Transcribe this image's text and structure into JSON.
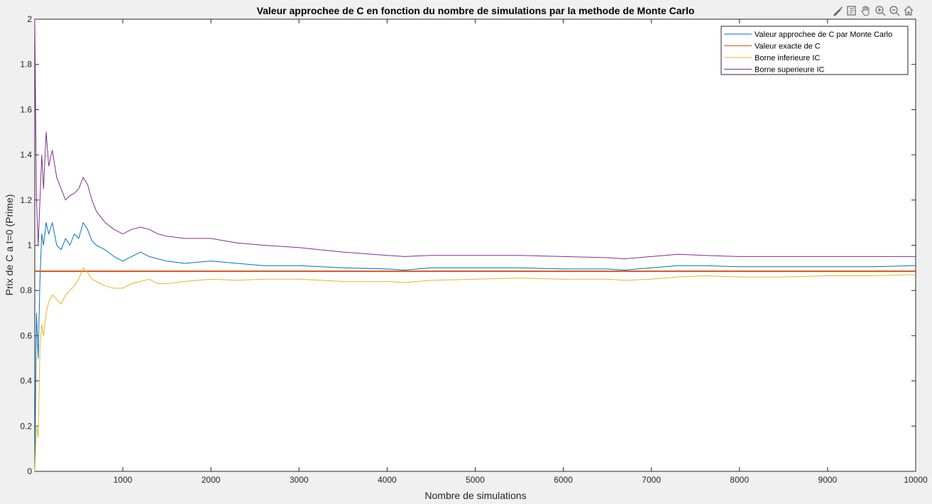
{
  "figure": {
    "toolbar": [
      {
        "name": "brush-icon"
      },
      {
        "name": "datatips-icon"
      },
      {
        "name": "pan-hand-icon"
      },
      {
        "name": "zoom-in-icon"
      },
      {
        "name": "zoom-out-icon"
      },
      {
        "name": "home-icon"
      }
    ]
  },
  "chart_data": {
    "type": "line",
    "title": "Valeur approchee de C en fonction du nombre de simulations par la methode de Monte Carlo",
    "xlabel": "Nombre de simulations",
    "ylabel": "Prix de C a t=0 (Prime)",
    "xlim": [
      1,
      10000
    ],
    "ylim": [
      0,
      2
    ],
    "xticks": [
      1000,
      2000,
      3000,
      4000,
      5000,
      6000,
      7000,
      8000,
      9000,
      10000
    ],
    "yticks": [
      0,
      0.2,
      0.4,
      0.6,
      0.8,
      1,
      1.2,
      1.4,
      1.6,
      1.8,
      2
    ],
    "grid": false,
    "legend_position": "top-right",
    "x": [
      1,
      20,
      40,
      60,
      80,
      100,
      130,
      160,
      200,
      250,
      300,
      350,
      400,
      450,
      500,
      550,
      600,
      650,
      700,
      800,
      900,
      1000,
      1100,
      1200,
      1300,
      1400,
      1500,
      1700,
      2000,
      2300,
      2600,
      3000,
      3500,
      4000,
      4200,
      4500,
      5000,
      5500,
      6000,
      6500,
      6700,
      7000,
      7300,
      7600,
      8000,
      8500,
      9000,
      9500,
      10000
    ],
    "series": [
      {
        "name": "Valeur approchee de C par Monte Carlo",
        "color": "#0072BD",
        "values": [
          0.0,
          0.7,
          0.5,
          0.85,
          1.05,
          1.0,
          1.1,
          1.05,
          1.1,
          1.0,
          0.98,
          1.03,
          1.0,
          1.05,
          1.03,
          1.1,
          1.07,
          1.02,
          1.0,
          0.98,
          0.95,
          0.93,
          0.95,
          0.97,
          0.95,
          0.94,
          0.93,
          0.92,
          0.93,
          0.92,
          0.91,
          0.91,
          0.9,
          0.895,
          0.89,
          0.9,
          0.9,
          0.9,
          0.895,
          0.895,
          0.89,
          0.9,
          0.91,
          0.91,
          0.905,
          0.905,
          0.905,
          0.905,
          0.91
        ]
      },
      {
        "name": "Valeur exacte de C",
        "color": "#D95319",
        "values": [
          0.885,
          0.885,
          0.885,
          0.885,
          0.885,
          0.885,
          0.885,
          0.885,
          0.885,
          0.885,
          0.885,
          0.885,
          0.885,
          0.885,
          0.885,
          0.885,
          0.885,
          0.885,
          0.885,
          0.885,
          0.885,
          0.885,
          0.885,
          0.885,
          0.885,
          0.885,
          0.885,
          0.885,
          0.885,
          0.885,
          0.885,
          0.885,
          0.885,
          0.885,
          0.885,
          0.885,
          0.885,
          0.885,
          0.885,
          0.885,
          0.885,
          0.885,
          0.885,
          0.885,
          0.885,
          0.885,
          0.885,
          0.885,
          0.885
        ]
      },
      {
        "name": "Borne inferieure IC",
        "color": "#EDB120",
        "values": [
          0.0,
          0.2,
          0.15,
          0.55,
          0.65,
          0.6,
          0.7,
          0.75,
          0.78,
          0.76,
          0.74,
          0.78,
          0.8,
          0.82,
          0.85,
          0.9,
          0.88,
          0.85,
          0.84,
          0.82,
          0.81,
          0.81,
          0.83,
          0.84,
          0.85,
          0.83,
          0.83,
          0.84,
          0.85,
          0.845,
          0.85,
          0.85,
          0.84,
          0.84,
          0.835,
          0.845,
          0.85,
          0.855,
          0.85,
          0.85,
          0.845,
          0.85,
          0.86,
          0.865,
          0.86,
          0.86,
          0.865,
          0.865,
          0.87
        ]
      },
      {
        "name": "Borne superieure IC",
        "color": "#7E2F8E",
        "values": [
          2.0,
          1.2,
          1.0,
          1.2,
          1.4,
          1.25,
          1.5,
          1.35,
          1.42,
          1.3,
          1.25,
          1.2,
          1.22,
          1.23,
          1.25,
          1.3,
          1.27,
          1.2,
          1.15,
          1.1,
          1.07,
          1.05,
          1.07,
          1.08,
          1.07,
          1.05,
          1.04,
          1.03,
          1.03,
          1.01,
          1.0,
          0.99,
          0.97,
          0.955,
          0.95,
          0.955,
          0.955,
          0.955,
          0.95,
          0.945,
          0.94,
          0.95,
          0.96,
          0.955,
          0.95,
          0.95,
          0.95,
          0.95,
          0.95
        ]
      }
    ]
  }
}
